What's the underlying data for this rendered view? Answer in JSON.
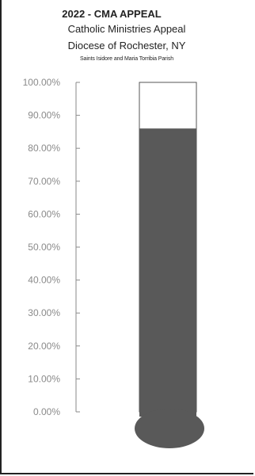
{
  "chart_data": {
    "type": "bar",
    "title": "2022 - CMA APPEAL",
    "subtitle_lines": [
      "Catholic Ministries Appeal",
      "Diocese of Rochester, NY",
      "Saints Isidore and Maria Torribia Parish"
    ],
    "categories": [
      ""
    ],
    "values": [
      0.86
    ],
    "ylim": [
      0,
      1
    ],
    "yticks": [
      {
        "value": 1.0,
        "label": "100.00%"
      },
      {
        "value": 0.9,
        "label": "90.00%"
      },
      {
        "value": 0.8,
        "label": "80.00%"
      },
      {
        "value": 0.7,
        "label": "70.00%"
      },
      {
        "value": 0.6,
        "label": "60.00%"
      },
      {
        "value": 0.5,
        "label": "50.00%"
      },
      {
        "value": 0.4,
        "label": "40.00%"
      },
      {
        "value": 0.3,
        "label": "30.00%"
      },
      {
        "value": 0.2,
        "label": "20.00%"
      },
      {
        "value": 0.1,
        "label": "10.00%"
      },
      {
        "value": 0.0,
        "label": "0.00%"
      }
    ],
    "grid": false,
    "style": "thermometer",
    "colors": {
      "fill": "#595959",
      "tube_outline": "#555555",
      "axis": "#8a8a8a"
    }
  }
}
